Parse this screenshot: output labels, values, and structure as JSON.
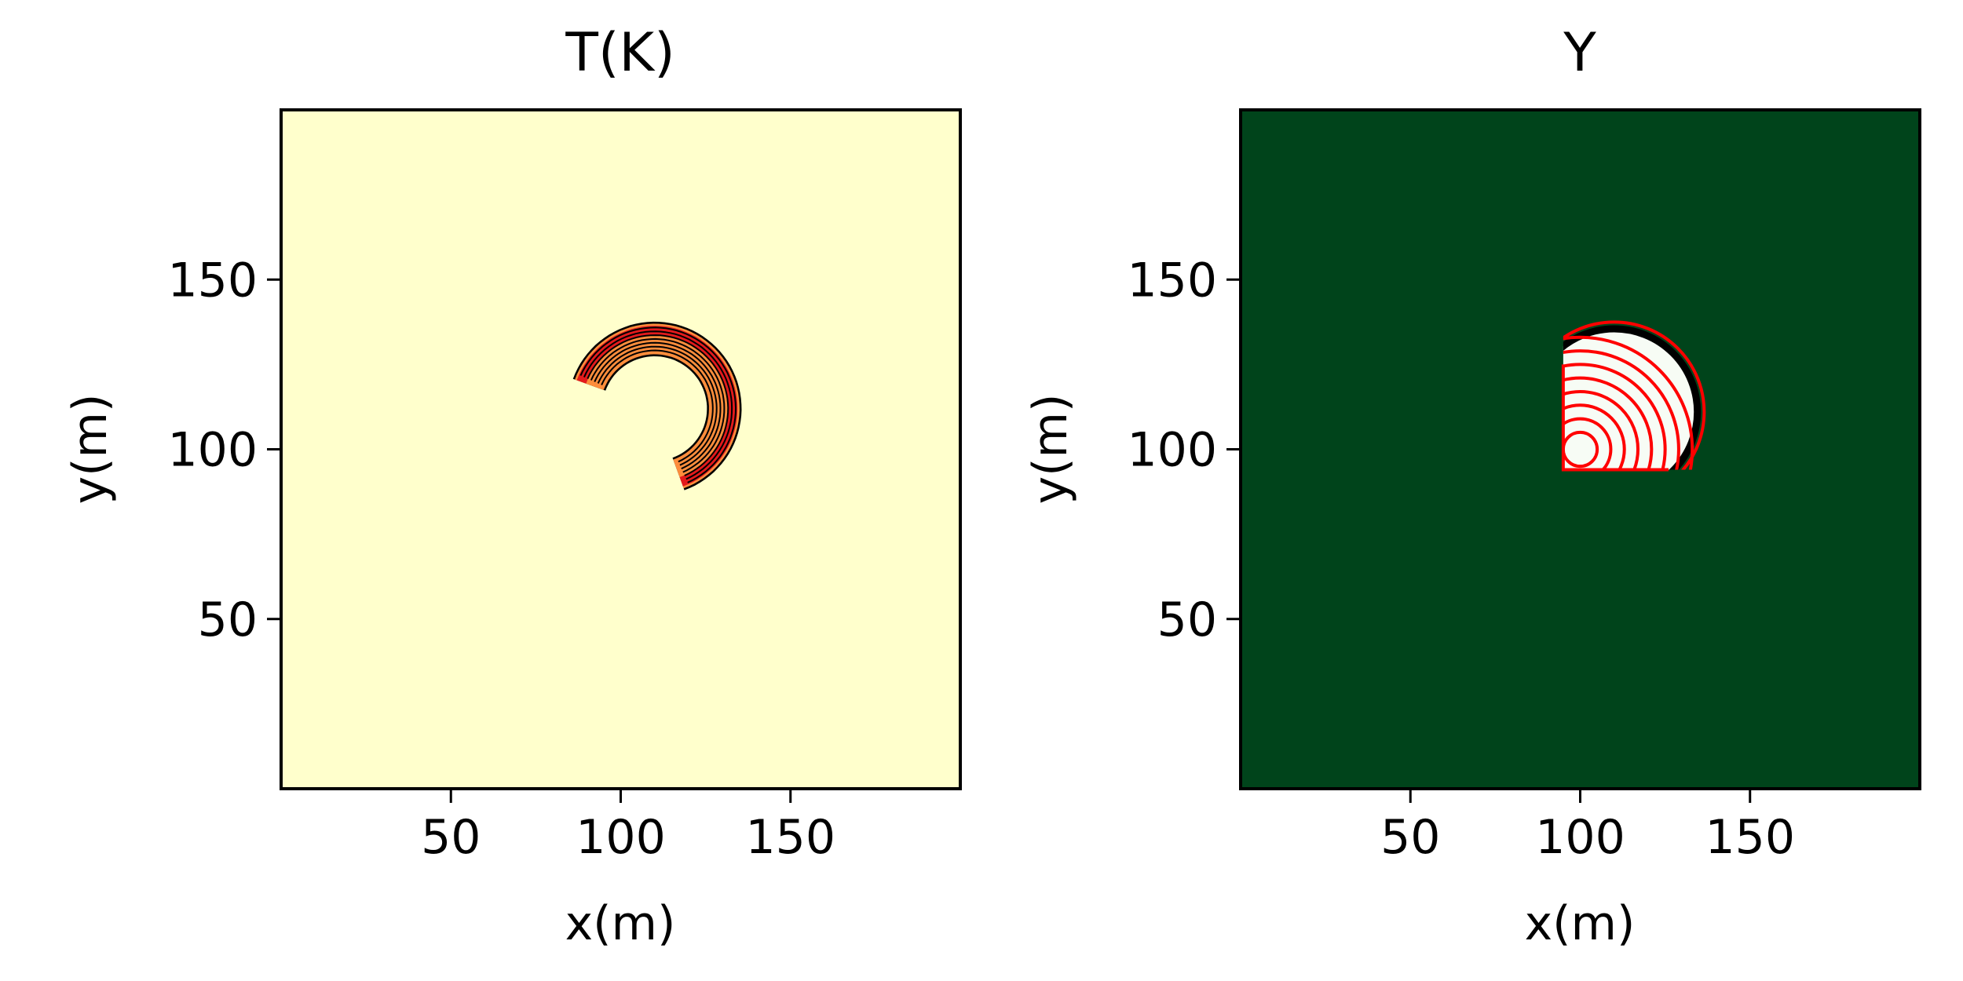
{
  "figure": {
    "background": "#ffffff"
  },
  "chart_data": [
    {
      "type": "heatmap",
      "title": "T(K)",
      "xlabel": "x(m)",
      "ylabel": "y(m)",
      "xlim": [
        0,
        200
      ],
      "ylim": [
        0,
        200
      ],
      "xticks": [
        50,
        100,
        150
      ],
      "yticks": [
        50,
        100,
        150
      ],
      "xtick_labels": [
        "50",
        "100",
        "150"
      ],
      "ytick_labels": [
        "50",
        "100",
        "150"
      ],
      "grid": false,
      "background_color": "#ffffcc",
      "field": {
        "shape": "crescent",
        "center": [
          110,
          112
        ],
        "outer_radius": 25,
        "inner_radius": 16,
        "arc_from_deg": -70,
        "arc_to_deg": 160,
        "peak_color": "#e31a1c",
        "mid_color": "#fd8d3c",
        "contour_color": "#000000",
        "contour_levels": 8
      }
    },
    {
      "type": "heatmap",
      "title": "Y",
      "xlabel": "x(m)",
      "ylabel": "y(m)",
      "xlim": [
        0,
        200
      ],
      "ylim": [
        0,
        200
      ],
      "xticks": [
        50,
        100,
        150
      ],
      "yticks": [
        50,
        100,
        150
      ],
      "xtick_labels": [
        "50",
        "100",
        "150"
      ],
      "ytick_labels": [
        "50",
        "100",
        "150"
      ],
      "grid": false,
      "background_color": "#00441b",
      "field": {
        "shape": "burned-region",
        "origin": [
          100,
          100
        ],
        "outer_radius": 27,
        "front_center": [
          110,
          111
        ],
        "x_min": 95,
        "y_min": 94,
        "x_max": 126,
        "inner_color": "#f7fcf5",
        "front_color": "#000000",
        "contour_color": "#ff0000",
        "contour_radii": [
          5,
          9,
          13,
          17,
          21,
          25,
          29,
          33
        ]
      }
    }
  ]
}
